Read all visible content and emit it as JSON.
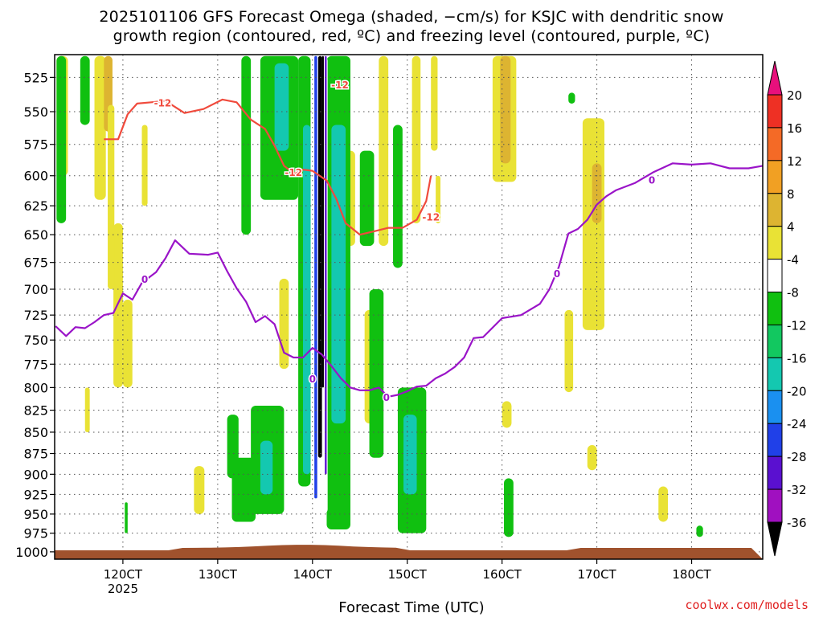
{
  "title": {
    "line1": "2025101106 GFS Forecast Omega (shaded, −cm/s) for KSJC with dendritic snow",
    "line2": "growth region (contoured, red, ºC) and freezing level (contoured, purple, ºC)"
  },
  "credit": "coolwx.com/models",
  "colors": {
    "ground": "#a0522d",
    "dendritic_contour": "#f04a3c",
    "freezing_contour": "#9a14c8",
    "grid": "#555555"
  },
  "chart_data": {
    "type": "heatmap",
    "xlabel": "Forecast Time (UTC)",
    "x_ticks": [
      {
        "value": 120,
        "label": "120CT",
        "sublabel": "2025"
      },
      {
        "value": 130,
        "label": "130CT"
      },
      {
        "value": 140,
        "label": "140CT"
      },
      {
        "value": 150,
        "label": "150CT"
      },
      {
        "value": 160,
        "label": "160CT"
      },
      {
        "value": 170,
        "label": "170CT"
      },
      {
        "value": 180,
        "label": "180CT"
      }
    ],
    "xlim": [
      112.8,
      187.5
    ],
    "y_ticks": [
      525,
      550,
      575,
      600,
      625,
      650,
      675,
      700,
      725,
      750,
      775,
      800,
      825,
      850,
      875,
      900,
      925,
      950,
      975,
      1000
    ],
    "ylim": [
      1010,
      509
    ],
    "y_scale": "log",
    "colorbar": {
      "labels": [
        "20",
        "16",
        "12",
        "8",
        "4",
        "-4",
        "-8",
        "-12",
        "-16",
        "-20",
        "-24",
        "-28",
        "-32",
        "-36"
      ],
      "levels": [
        {
          "color": "#e8107c"
        },
        {
          "color": "#ee3024"
        },
        {
          "color": "#f46a26"
        },
        {
          "color": "#f1a023"
        },
        {
          "color": "#ddb431"
        },
        {
          "color": "#e9e235"
        },
        {
          "color": "#ffffff"
        },
        {
          "color": "#10c010"
        },
        {
          "color": "#12c860"
        },
        {
          "color": "#14c8b0"
        },
        {
          "color": "#1a90f0"
        },
        {
          "color": "#2040e8"
        },
        {
          "color": "#5a10d0"
        },
        {
          "color": "#a010c0"
        },
        {
          "color": "#a8a8a8"
        }
      ]
    },
    "shaded_regions": [
      {
        "shade": "yellow",
        "x": [
          113.0,
          114.2
        ],
        "p": [
          510,
          600
        ]
      },
      {
        "shade": "yellow",
        "x": [
          117.0,
          118.2
        ],
        "p": [
          510,
          620
        ]
      },
      {
        "shade": "gold",
        "x": [
          118.0,
          118.9
        ],
        "p": [
          510,
          565
        ]
      },
      {
        "shade": "yellow",
        "x": [
          119.0,
          120.0
        ],
        "p": [
          640,
          800
        ]
      },
      {
        "shade": "yellow",
        "x": [
          118.4,
          119.1
        ],
        "p": [
          545,
          700
        ]
      },
      {
        "shade": "yellow",
        "x": [
          122.0,
          122.6
        ],
        "p": [
          560,
          625
        ]
      },
      {
        "shade": "yellow",
        "x": [
          120.0,
          121.0
        ],
        "p": [
          710,
          800
        ]
      },
      {
        "shade": "yellow",
        "x": [
          116.0,
          116.5
        ],
        "p": [
          800,
          850
        ]
      },
      {
        "shade": "yellow",
        "x": [
          127.5,
          128.6
        ],
        "p": [
          890,
          950
        ]
      },
      {
        "shade": "yellow",
        "x": [
          136.5,
          137.5
        ],
        "p": [
          690,
          780
        ]
      },
      {
        "shade": "yellow",
        "x": [
          143.5,
          144.5
        ],
        "p": [
          580,
          660
        ]
      },
      {
        "shade": "yellow",
        "x": [
          145.5,
          146.5
        ],
        "p": [
          720,
          840
        ]
      },
      {
        "shade": "yellow",
        "x": [
          147.0,
          148.0
        ],
        "p": [
          510,
          660
        ]
      },
      {
        "shade": "yellow",
        "x": [
          149.5,
          150.6
        ],
        "p": [
          820,
          950
        ]
      },
      {
        "shade": "yellow",
        "x": [
          150.5,
          151.4
        ],
        "p": [
          510,
          640
        ]
      },
      {
        "shade": "yellow",
        "x": [
          152.5,
          153.2
        ],
        "p": [
          510,
          580
        ]
      },
      {
        "shade": "yellow",
        "x": [
          153.0,
          153.5
        ],
        "p": [
          600,
          640
        ]
      },
      {
        "shade": "yellow",
        "x": [
          159.0,
          161.5
        ],
        "p": [
          510,
          605
        ]
      },
      {
        "shade": "gold",
        "x": [
          159.8,
          160.9
        ],
        "p": [
          510,
          590
        ]
      },
      {
        "shade": "yellow",
        "x": [
          160.0,
          161.0
        ],
        "p": [
          815,
          845
        ]
      },
      {
        "shade": "yellow",
        "x": [
          166.6,
          167.5
        ],
        "p": [
          720,
          805
        ]
      },
      {
        "shade": "yellow",
        "x": [
          168.5,
          170.8
        ],
        "p": [
          555,
          740
        ]
      },
      {
        "shade": "gold",
        "x": [
          169.5,
          170.5
        ],
        "p": [
          590,
          640
        ]
      },
      {
        "shade": "yellow",
        "x": [
          169.0,
          170.0
        ],
        "p": [
          865,
          895
        ]
      },
      {
        "shade": "yellow",
        "x": [
          176.5,
          177.5
        ],
        "p": [
          915,
          960
        ]
      },
      {
        "shade": "green",
        "x": [
          113.0,
          114.0
        ],
        "p": [
          510,
          640
        ]
      },
      {
        "shade": "green",
        "x": [
          115.5,
          116.5
        ],
        "p": [
          510,
          560
        ]
      },
      {
        "shade": "green",
        "x": [
          132.5,
          133.5
        ],
        "p": [
          510,
          650
        ]
      },
      {
        "shade": "green",
        "x": [
          134.5,
          138.5
        ],
        "p": [
          510,
          620
        ]
      },
      {
        "shade": "teal",
        "x": [
          136.0,
          137.5
        ],
        "p": [
          515,
          580
        ]
      },
      {
        "shade": "green",
        "x": [
          138.5,
          139.8
        ],
        "p": [
          510,
          915
        ]
      },
      {
        "shade": "teal",
        "x": [
          139.0,
          139.8
        ],
        "p": [
          560,
          900
        ]
      },
      {
        "shade": "green",
        "x": [
          133.5,
          137.0
        ],
        "p": [
          820,
          950
        ]
      },
      {
        "shade": "teal",
        "x": [
          134.5,
          135.8
        ],
        "p": [
          860,
          925
        ]
      },
      {
        "shade": "green",
        "x": [
          131.0,
          132.2
        ],
        "p": [
          830,
          905
        ]
      },
      {
        "shade": "green",
        "x": [
          131.5,
          134.0
        ],
        "p": [
          880,
          960
        ]
      },
      {
        "shade": "green",
        "x": [
          141.5,
          144.0
        ],
        "p": [
          510,
          970
        ]
      },
      {
        "shade": "teal",
        "x": [
          142.0,
          143.5
        ],
        "p": [
          560,
          840
        ]
      },
      {
        "shade": "green",
        "x": [
          145.0,
          146.5
        ],
        "p": [
          580,
          660
        ]
      },
      {
        "shade": "green",
        "x": [
          148.5,
          149.5
        ],
        "p": [
          560,
          680
        ]
      },
      {
        "shade": "green",
        "x": [
          146.0,
          147.5
        ],
        "p": [
          700,
          880
        ]
      },
      {
        "shade": "green",
        "x": [
          149.0,
          152.0
        ],
        "p": [
          800,
          975
        ]
      },
      {
        "shade": "teal",
        "x": [
          149.6,
          151.0
        ],
        "p": [
          830,
          925
        ]
      },
      {
        "shade": "green",
        "x": [
          160.2,
          161.2
        ],
        "p": [
          905,
          980
        ]
      },
      {
        "shade": "green",
        "x": [
          120.2,
          120.5
        ],
        "p": [
          935,
          975
        ]
      },
      {
        "shade": "green",
        "x": [
          167.0,
          167.7
        ],
        "p": [
          536,
          544
        ]
      },
      {
        "shade": "green",
        "x": [
          180.5,
          181.2
        ],
        "p": [
          965,
          980
        ]
      },
      {
        "shade": "white",
        "x": [
          140.4,
          141.6
        ],
        "p": [
          510,
          950
        ]
      },
      {
        "shade": "blue",
        "x": [
          140.2,
          140.5
        ],
        "p": [
          510,
          930
        ]
      },
      {
        "shade": "purple",
        "x": [
          141.3,
          141.5
        ],
        "p": [
          510,
          900
        ]
      },
      {
        "shade": "black",
        "x": [
          140.6,
          141.0
        ],
        "p": [
          510,
          880
        ]
      },
      {
        "shade": "black",
        "x": [
          141.0,
          141.2
        ],
        "p": [
          510,
          800
        ]
      }
    ],
    "series": [
      {
        "name": "-12",
        "labels": [
          {
            "x": 124.2,
            "p": 543
          },
          {
            "x": 138.0,
            "p": 597
          },
          {
            "x": 152.5,
            "p": 634
          },
          {
            "x": 142.9,
            "p": 530
          }
        ],
        "x": [
          118.0,
          119.5,
          120.5,
          121.5,
          123.0,
          124.5,
          126.5,
          128.5,
          130.5,
          132.0,
          133.5,
          135.0,
          136.0,
          137.0,
          138.0,
          139.0,
          140.0,
          141.5,
          142.5,
          143.5,
          145.0,
          146.5,
          148.0,
          149.5,
          151.0,
          152.0,
          152.5
        ],
        "y": [
          571,
          571,
          552,
          544,
          543,
          542,
          551,
          548,
          541,
          543,
          556,
          563,
          576,
          592,
          598,
          595,
          596,
          604,
          619,
          640,
          650,
          647,
          644,
          644,
          637,
          621,
          600
        ]
      },
      {
        "name": "0",
        "labels": [
          {
            "x": 122.3,
            "p": 690
          },
          {
            "x": 140.0,
            "p": 790
          },
          {
            "x": 147.8,
            "p": 810
          },
          {
            "x": 165.8,
            "p": 685
          },
          {
            "x": 175.8,
            "p": 603
          }
        ],
        "x": [
          112.9,
          114.0,
          115.0,
          116.0,
          117.0,
          118.0,
          119.0,
          120.0,
          121.0,
          122.0,
          123.5,
          124.5,
          125.5,
          127.0,
          129.0,
          130.0,
          131.0,
          132.0,
          133.0,
          134.0,
          135.0,
          136.0,
          137.0,
          138.0,
          139.0,
          140.0,
          141.0,
          142.0,
          143.0,
          144.0,
          145.0,
          146.0,
          147.0,
          148.0,
          149.0,
          150.0,
          151.0,
          152.0,
          153.0,
          154.0,
          155.0,
          156.0,
          157.0,
          158.0,
          160.0,
          162.0,
          164.0,
          165.0,
          166.0,
          167.0,
          168.0,
          169.0,
          170.0,
          171.0,
          172.0,
          174.0,
          176.0,
          178.0,
          180.0,
          182.0,
          184.0,
          186.0,
          187.5
        ],
        "y": [
          736,
          746,
          737,
          738,
          732,
          725,
          723,
          704,
          710,
          694,
          684,
          671,
          655,
          667,
          668,
          666,
          683,
          699,
          712,
          732,
          726,
          734,
          763,
          768,
          768,
          758,
          765,
          777,
          790,
          800,
          803,
          803,
          800,
          810,
          808,
          804,
          799,
          798,
          790,
          785,
          778,
          768,
          748,
          747,
          728,
          725,
          714,
          700,
          679,
          649,
          645,
          637,
          624,
          617,
          612,
          606,
          597,
          590,
          591,
          590,
          594,
          594,
          592
        ]
      }
    ]
  }
}
